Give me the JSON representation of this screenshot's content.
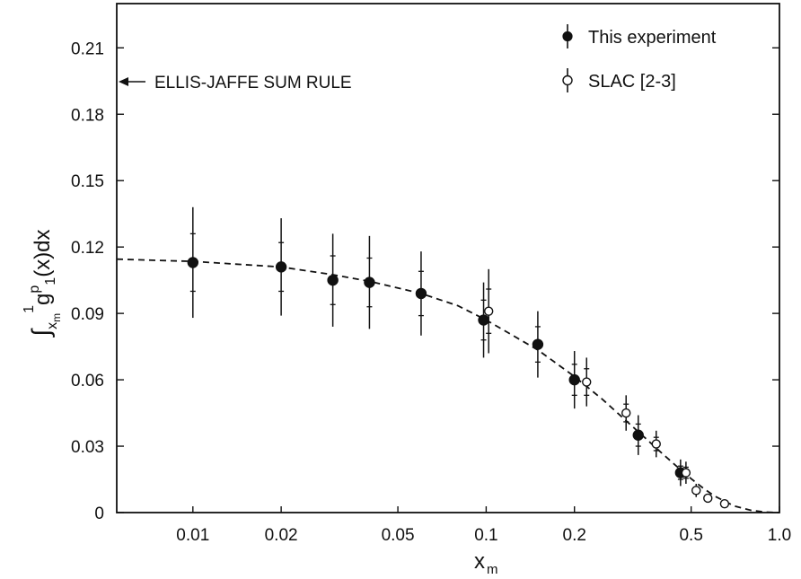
{
  "chart_data": {
    "type": "scatter",
    "title": "",
    "xlabel": "x_m",
    "ylabel": "∫_{x_m}^1 g_1^p(x) dx",
    "xscale": "log",
    "xlim": [
      0.0055,
      1.0
    ],
    "ylim": [
      0,
      0.23
    ],
    "x_ticks": [
      {
        "value": 0.01,
        "label": "0.01"
      },
      {
        "value": 0.02,
        "label": "0.02"
      },
      {
        "value": 0.05,
        "label": "0.05"
      },
      {
        "value": 0.1,
        "label": "0.1"
      },
      {
        "value": 0.2,
        "label": "0.2"
      },
      {
        "value": 0.5,
        "label": "0.5"
      },
      {
        "value": 1.0,
        "label": "1.0"
      }
    ],
    "y_ticks": [
      {
        "value": 0,
        "label": "0"
      },
      {
        "value": 0.03,
        "label": "0.03"
      },
      {
        "value": 0.06,
        "label": "0.06"
      },
      {
        "value": 0.09,
        "label": "0.09"
      },
      {
        "value": 0.12,
        "label": "0.12"
      },
      {
        "value": 0.15,
        "label": "0.15"
      },
      {
        "value": 0.18,
        "label": "0.18"
      },
      {
        "value": 0.21,
        "label": "0.21"
      }
    ],
    "grid": false,
    "legend_position": "top-right",
    "series": [
      {
        "name": "This experiment",
        "marker": "filled-circle",
        "points": [
          {
            "x": 0.01,
            "y": 0.113,
            "err_total": 0.025,
            "err_stat": 0.013
          },
          {
            "x": 0.02,
            "y": 0.111,
            "err_total": 0.022,
            "err_stat": 0.011
          },
          {
            "x": 0.03,
            "y": 0.105,
            "err_total": 0.021,
            "err_stat": 0.011
          },
          {
            "x": 0.04,
            "y": 0.104,
            "err_total": 0.021,
            "err_stat": 0.011
          },
          {
            "x": 0.06,
            "y": 0.099,
            "err_total": 0.019,
            "err_stat": 0.01
          },
          {
            "x": 0.098,
            "y": 0.087,
            "err_total": 0.017,
            "err_stat": 0.009
          },
          {
            "x": 0.15,
            "y": 0.076,
            "err_total": 0.015,
            "err_stat": 0.008
          },
          {
            "x": 0.2,
            "y": 0.06,
            "err_total": 0.013,
            "err_stat": 0.007
          },
          {
            "x": 0.33,
            "y": 0.035,
            "err_total": 0.009,
            "err_stat": 0.005
          },
          {
            "x": 0.46,
            "y": 0.018,
            "err_total": 0.006,
            "err_stat": 0.003
          }
        ]
      },
      {
        "name": "SLAC [2-3]",
        "marker": "open-circle",
        "points": [
          {
            "x": 0.102,
            "y": 0.091,
            "err_total": 0.019,
            "err_stat": 0.01
          },
          {
            "x": 0.22,
            "y": 0.059,
            "err_total": 0.011,
            "err_stat": 0.006
          },
          {
            "x": 0.3,
            "y": 0.045,
            "err_total": 0.008,
            "err_stat": 0.004
          },
          {
            "x": 0.38,
            "y": 0.031,
            "err_total": 0.006,
            "err_stat": 0.003
          },
          {
            "x": 0.48,
            "y": 0.018,
            "err_total": 0.005,
            "err_stat": 0.0025
          },
          {
            "x": 0.52,
            "y": 0.01,
            "err_total": 0.003,
            "err_stat": 0.0015
          },
          {
            "x": 0.57,
            "y": 0.0065,
            "err_total": 0,
            "err_stat": 0
          },
          {
            "x": 0.65,
            "y": 0.004,
            "err_total": 0,
            "err_stat": 0
          }
        ]
      }
    ],
    "fit_curve": {
      "style": "dashed",
      "x": [
        0.0055,
        0.01,
        0.02,
        0.03,
        0.04,
        0.06,
        0.08,
        0.1,
        0.15,
        0.2,
        0.25,
        0.3,
        0.35,
        0.4,
        0.45,
        0.5,
        0.55,
        0.6,
        0.7,
        0.8,
        0.9,
        1.0
      ],
      "y": [
        0.1145,
        0.1135,
        0.111,
        0.1075,
        0.1045,
        0.099,
        0.0935,
        0.087,
        0.0735,
        0.0615,
        0.051,
        0.0415,
        0.0335,
        0.0265,
        0.0205,
        0.0153,
        0.011,
        0.0075,
        0.003,
        0.001,
        0.0002,
        0.0
      ]
    },
    "annotations": [
      {
        "text": "ELLIS-JAFFE SUM RULE",
        "y": 0.19,
        "arrow": "left"
      }
    ]
  }
}
